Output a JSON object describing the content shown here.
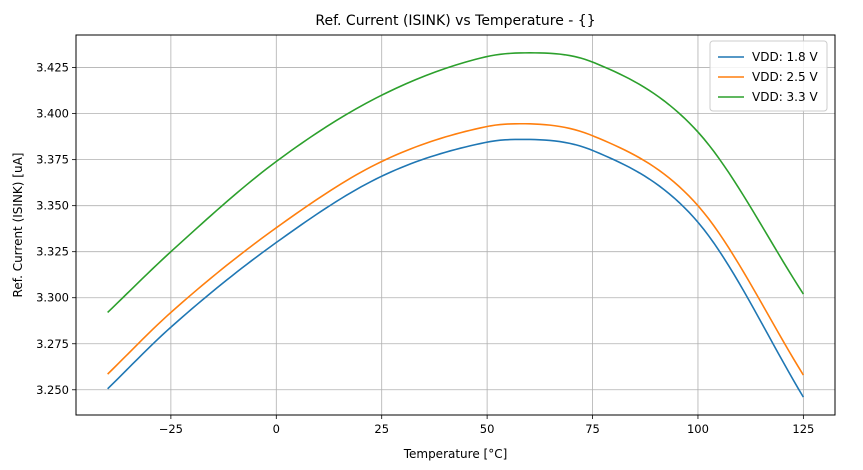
{
  "chart_data": {
    "type": "line",
    "title": "Ref. Current (ISINK) vs Temperature - {}",
    "xlabel": "Temperature [°C]",
    "ylabel": "Ref. Current (ISINK) [uA]",
    "xlim": [
      -47.5,
      132.5
    ],
    "ylim": [
      3.2363,
      3.4427
    ],
    "xticks": [
      -25,
      0,
      25,
      50,
      75,
      100,
      125
    ],
    "xtick_labels": [
      "−25",
      "0",
      "25",
      "50",
      "75",
      "100",
      "125"
    ],
    "yticks": [
      3.25,
      3.275,
      3.3,
      3.325,
      3.35,
      3.375,
      3.4,
      3.425
    ],
    "ytick_labels": [
      "3.250",
      "3.275",
      "3.300",
      "3.325",
      "3.350",
      "3.375",
      "3.400",
      "3.425"
    ],
    "grid": true,
    "legend_position": "top-right",
    "series": [
      {
        "name": "VDD: 1.8 V",
        "color": "#1f77b4",
        "x": [
          -40,
          -25,
          0,
          25,
          50,
          58,
          75,
          100,
          125
        ],
        "y": [
          3.2505,
          3.284,
          3.33,
          3.366,
          3.3845,
          3.386,
          3.38,
          3.341,
          3.246
        ]
      },
      {
        "name": "VDD: 2.5 V",
        "color": "#ff7f0e",
        "x": [
          -40,
          -25,
          0,
          25,
          50,
          58,
          75,
          100,
          125
        ],
        "y": [
          3.2585,
          3.292,
          3.338,
          3.374,
          3.393,
          3.3945,
          3.388,
          3.35,
          3.258
        ]
      },
      {
        "name": "VDD: 3.3 V",
        "color": "#2ca02c",
        "x": [
          -40,
          -25,
          0,
          25,
          50,
          60,
          75,
          100,
          125
        ],
        "y": [
          3.292,
          3.325,
          3.374,
          3.41,
          3.431,
          3.433,
          3.428,
          3.39,
          3.302
        ]
      }
    ]
  }
}
